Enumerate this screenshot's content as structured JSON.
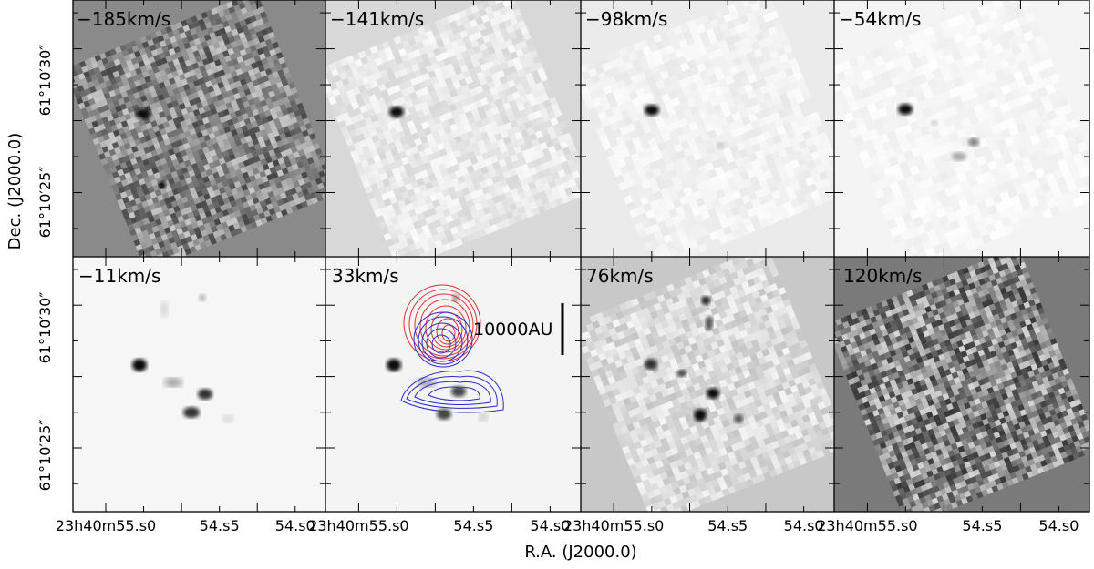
{
  "figure": {
    "x_axis_title": "R.A.  (J2000.0)",
    "y_axis_title": "Dec.  (J2000.0)",
    "x_tick_labels": [
      "23h40m55.s0",
      "54.s5",
      "54.s0"
    ],
    "y_tick_labels": [
      "61°10′30″",
      "61°10′25″"
    ],
    "scale_bar_label": "10000AU",
    "panels": [
      {
        "velocity_label": "−185km/s",
        "background": "#8a8a8a",
        "style": "noise-dark"
      },
      {
        "velocity_label": "−141km/s",
        "background": "#d8d8d8",
        "style": "faint"
      },
      {
        "velocity_label": "−98km/s",
        "background": "#ebebeb",
        "style": "faint"
      },
      {
        "velocity_label": "−54km/s",
        "background": "#f4f4f4",
        "style": "faint"
      },
      {
        "velocity_label": "−11km/s",
        "background": "#f6f6f6",
        "style": "faint"
      },
      {
        "velocity_label": "33km/s",
        "background": "#f4f4f4",
        "style": "faint"
      },
      {
        "velocity_label": "76km/s",
        "background": "#c8c8c8",
        "style": "noise-light"
      },
      {
        "velocity_label": "120km/s",
        "background": "#7a7a7a",
        "style": "noise-dark"
      }
    ],
    "contour_colors": {
      "red": "#e03030",
      "blue": "#2a2ad0"
    }
  }
}
